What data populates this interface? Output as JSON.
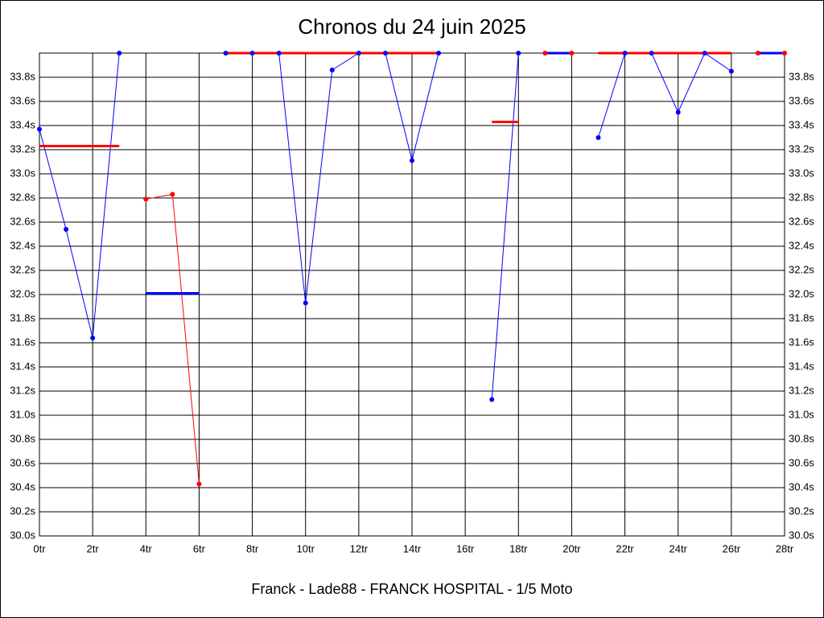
{
  "chart_data": {
    "type": "line",
    "title": "Chronos du 24 juin 2025",
    "xlabel": "Franck - Lade88 - FRANCK HOSPITAL - 1/5 Moto",
    "xlim": [
      0,
      28
    ],
    "ylim": [
      30,
      34
    ],
    "grid": true,
    "xticks": [
      {
        "value": 0,
        "label": "0tr"
      },
      {
        "value": 2,
        "label": "2tr"
      },
      {
        "value": 4,
        "label": "4tr"
      },
      {
        "value": 6,
        "label": "6tr"
      },
      {
        "value": 8,
        "label": "8tr"
      },
      {
        "value": 10,
        "label": "10tr"
      },
      {
        "value": 12,
        "label": "12tr"
      },
      {
        "value": 14,
        "label": "14tr"
      },
      {
        "value": 16,
        "label": "16tr"
      },
      {
        "value": 18,
        "label": "18tr"
      },
      {
        "value": 20,
        "label": "20tr"
      },
      {
        "value": 22,
        "label": "22tr"
      },
      {
        "value": 24,
        "label": "24tr"
      },
      {
        "value": 26,
        "label": "26tr"
      },
      {
        "value": 28,
        "label": "28tr"
      }
    ],
    "yticks": [
      {
        "value": 30,
        "label": "30.0s"
      },
      {
        "value": 30.2,
        "label": "30.2s"
      },
      {
        "value": 30.4,
        "label": "30.4s"
      },
      {
        "value": 30.6,
        "label": "30.6s"
      },
      {
        "value": 30.8,
        "label": "30.8s"
      },
      {
        "value": 31,
        "label": "31.0s"
      },
      {
        "value": 31.2,
        "label": "31.2s"
      },
      {
        "value": 31.4,
        "label": "31.4s"
      },
      {
        "value": 31.6,
        "label": "31.6s"
      },
      {
        "value": 31.8,
        "label": "31.8s"
      },
      {
        "value": 32,
        "label": "32.0s"
      },
      {
        "value": 32.2,
        "label": "32.2s"
      },
      {
        "value": 32.4,
        "label": "32.4s"
      },
      {
        "value": 32.6,
        "label": "32.6s"
      },
      {
        "value": 32.8,
        "label": "32.8s"
      },
      {
        "value": 33,
        "label": "33.0s"
      },
      {
        "value": 33.2,
        "label": "33.2s"
      },
      {
        "value": 33.4,
        "label": "33.4s"
      },
      {
        "value": 33.6,
        "label": "33.6s"
      },
      {
        "value": 33.8,
        "label": "33.8s"
      }
    ],
    "series": [
      {
        "color": "#0000ff",
        "x": [
          0,
          1,
          2,
          3
        ],
        "values": [
          33.37,
          32.54,
          31.64,
          34
        ]
      },
      {
        "color": "#ff0000",
        "x": [
          4,
          5,
          6
        ],
        "values": [
          32.79,
          32.83,
          30.43
        ]
      },
      {
        "color": "#0000ff",
        "x": [
          7,
          8,
          9,
          10,
          11,
          12,
          13,
          14,
          15
        ],
        "values": [
          34,
          34,
          34,
          31.93,
          33.86,
          34,
          34,
          33.11,
          34
        ]
      },
      {
        "color": "#0000ff",
        "x": [
          17,
          18
        ],
        "values": [
          31.13,
          34
        ]
      },
      {
        "color": "#ff0000",
        "x": [
          19,
          20
        ],
        "values": [
          34,
          34
        ]
      },
      {
        "color": "#0000ff",
        "x": [
          21,
          22,
          23,
          24,
          25,
          26
        ],
        "values": [
          33.3,
          34,
          34,
          33.51,
          34,
          33.85
        ]
      },
      {
        "color": "#ff0000",
        "x": [
          27,
          28
        ],
        "values": [
          34,
          34
        ]
      }
    ],
    "reference_lines": [
      {
        "color": "#ff0000",
        "x": [
          0,
          3
        ],
        "value": 33.23
      },
      {
        "color": "#0000ff",
        "x": [
          4,
          6
        ],
        "value": 32.01
      },
      {
        "color": "#ff0000",
        "x": [
          7,
          15
        ],
        "value": 34
      },
      {
        "color": "#ff0000",
        "x": [
          17,
          18
        ],
        "value": 33.43
      },
      {
        "color": "#0000ff",
        "x": [
          19,
          20
        ],
        "value": 34
      },
      {
        "color": "#ff0000",
        "x": [
          21,
          26
        ],
        "value": 34
      },
      {
        "color": "#0000ff",
        "x": [
          27,
          28
        ],
        "value": 34
      }
    ]
  }
}
